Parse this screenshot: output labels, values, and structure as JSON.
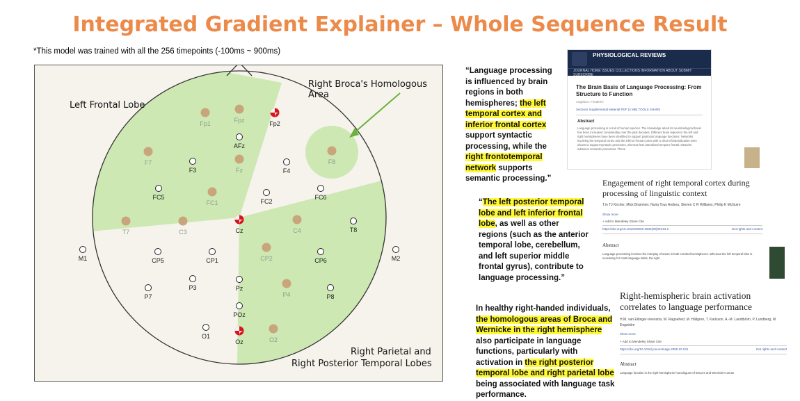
{
  "title": "Integrated Gradient Explainer – Whole Sequence Result",
  "note": "*This model was trained with all the 256 timepoints (-100ms ~ 900ms)",
  "eeg": {
    "labels": {
      "left_frontal": "Left Frontal Lobe",
      "right_broca": "Right Broca's Homologous Area",
      "right_parietal": "Right Parietal and",
      "right_temporal": "Right Posterior Temporal Lobes"
    },
    "region_color": "#cde8b3",
    "highlight_color": "#c9a57b",
    "half_color": "#d8141e",
    "electrodes": [
      {
        "name": "Fp1",
        "state": "h"
      },
      {
        "name": "Fpz",
        "state": "h"
      },
      {
        "name": "Fp2",
        "state": "half"
      },
      {
        "name": "AFz",
        "state": "n"
      },
      {
        "name": "F7",
        "state": "h"
      },
      {
        "name": "F3",
        "state": "n"
      },
      {
        "name": "Fz",
        "state": "h"
      },
      {
        "name": "F4",
        "state": "n"
      },
      {
        "name": "F8",
        "state": "h"
      },
      {
        "name": "FC5",
        "state": "n"
      },
      {
        "name": "FC1",
        "state": "h"
      },
      {
        "name": "FC2",
        "state": "n"
      },
      {
        "name": "FC6",
        "state": "n"
      },
      {
        "name": "T7",
        "state": "h"
      },
      {
        "name": "C3",
        "state": "h"
      },
      {
        "name": "Cz",
        "state": "half"
      },
      {
        "name": "C4",
        "state": "h"
      },
      {
        "name": "T8",
        "state": "n"
      },
      {
        "name": "M1",
        "state": "n"
      },
      {
        "name": "CP5",
        "state": "n"
      },
      {
        "name": "CP1",
        "state": "n"
      },
      {
        "name": "CP2",
        "state": "h"
      },
      {
        "name": "CP6",
        "state": "n"
      },
      {
        "name": "M2",
        "state": "n"
      },
      {
        "name": "P7",
        "state": "n"
      },
      {
        "name": "P3",
        "state": "n"
      },
      {
        "name": "Pz",
        "state": "n"
      },
      {
        "name": "P4",
        "state": "h"
      },
      {
        "name": "P8",
        "state": "n"
      },
      {
        "name": "POz",
        "state": "n"
      },
      {
        "name": "O1",
        "state": "n"
      },
      {
        "name": "Oz",
        "state": "half"
      },
      {
        "name": "O2",
        "state": "h"
      }
    ]
  },
  "quotes": {
    "q1": {
      "p1": "“Language processing is influenced by brain regions in both hemispheres; ",
      "h1": "the left temporal cortex and inferior frontal cortex",
      "p2": " support syntactic processing, while the ",
      "h2": "right frontotemporal network",
      "p3": " supports semantic processing.”"
    },
    "q2": {
      "p1": "“",
      "h1": "The left posterior temporal lobe and left inferior frontal lobe",
      "p2": ", as well as other regions (such as the anterior temporal lobe, cerebellum, and left superior middle frontal gyrus), contribute to language processing.”"
    },
    "q3": {
      "p1": "In healthy right-handed individuals, ",
      "h1": "the homologous areas of Broca and Wernicke in the right hemisphere",
      "p2": " also participate in language functions, particularly with activation in ",
      "h2": "the right posterior temporal lobe and right parietal lobe",
      "p3": " being associated with language task performance."
    }
  },
  "papers": {
    "pr": {
      "journal": "PHYSIOLOGICAL REVIEWS",
      "nav": "JOURNAL HOME   ISSUES   COLLECTIONS   INFORMATION   ABOUT   SUBMIT   SUBSCRIBE",
      "title": "The Brain Basis of Language Processing: From Structure to Function",
      "author": "Angela D. Friederici",
      "links": "Sections   Supplemental Material   PDF (4 MB)   TOOLS   SHARE",
      "abstract_heading": "Abstract",
      "abstract": "Language processing is a trait of human species. The knowledge about its neurobiological basis has been increased considerably over the past decades. Different brain regions in the left and right hemispheres have been identified to support particular language functions. Networks involving the temporal cortex and the inferior frontal cortex with a clear left lateralization were shown to support syntactic processes, whereas less lateralized temporo-frontal networks subserve semantic processes. These"
    },
    "p2": {
      "title": "Engagement of right temporal cortex during processing of linguistic context",
      "authors": "T.in TJ Kircher, Mick Brammer, Nuria Tous Andreu, Steven C R Williams, Philip K McGuire",
      "show_more": "Show more",
      "actions": "+ Add to Mendeley   Share   Cite",
      "doi": "https://doi.org/10.1016/S0028-3932(00)00143-2",
      "rights": "Get rights and content",
      "abstract_heading": "Abstract",
      "abstract": "Language processing involves the interplay of areas in both cerebral hemispheres. Whereas the left temporal lobe is necessary for most language tasks, the right"
    },
    "p3": {
      "title": "Right-hemispheric brain activation correlates to language performance",
      "authors": "H.M. van Ettinger-Veenstra, M. Ragnehed, M. Hällgren, T. Karlsson, A.-M. Landtblom, P. Lundberg, M. Engström",
      "show_more": "Show more",
      "actions": "+ Add to Mendeley   Share   Cite",
      "doi": "https://doi.org/10.1016/j.neuroimage.2009.10.041",
      "rights": "Get rights and content",
      "abstract_heading": "Abstract",
      "abstract": "Language function in the right-hemispheric homologues of Broca's and Wernicke's areas"
    }
  }
}
